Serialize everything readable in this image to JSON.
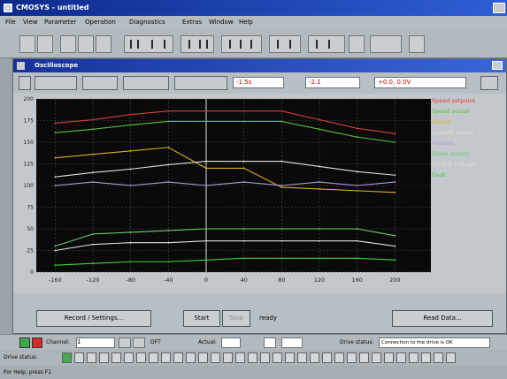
{
  "app": {
    "title": "CMOSYS - untitled"
  },
  "menu": [
    "File",
    "View",
    "Parameter",
    "Operation",
    "Diagnostics",
    "Extras",
    "Window",
    "Help"
  ],
  "child_window": {
    "title": "Oscilloscope"
  },
  "chart_toolbar": {
    "readout_1": "-1.5s",
    "readout_2": "-2.1",
    "readout_3": "+0.0, 0.0V"
  },
  "chart_data": {
    "type": "line",
    "x": [
      -160,
      -120,
      -80,
      -40,
      0,
      40,
      80,
      120,
      160,
      200
    ],
    "xlim": [
      -180,
      240
    ],
    "ylim": [
      0,
      200
    ],
    "x_ticks": [
      "-160",
      "-120",
      "-80",
      "-40",
      "0",
      "40",
      "80",
      "120",
      "160",
      "200"
    ],
    "y_ticks": [
      "200",
      "175",
      "150",
      "125",
      "100",
      "75",
      "50",
      "25",
      "0"
    ],
    "grid": true,
    "legend_position": "right",
    "series": [
      {
        "name": "Speed setpoint",
        "color": "#e23b3b",
        "values": [
          172,
          176,
          182,
          186,
          186,
          186,
          186,
          176,
          166,
          160
        ]
      },
      {
        "name": "Speed actual",
        "color": "#5fbe3a",
        "values": [
          161,
          165,
          170,
          174,
          174,
          174,
          174,
          165,
          156,
          150
        ]
      },
      {
        "name": "Torque",
        "color": "#d7b321",
        "values": [
          132,
          136,
          140,
          144,
          120,
          120,
          98,
          96,
          94,
          92
        ]
      },
      {
        "name": "Current actual",
        "color": "#e2e2e2",
        "values": [
          110,
          115,
          119,
          124,
          128,
          128,
          128,
          122,
          116,
          112
        ]
      },
      {
        "name": "Position",
        "color": "#b59be0",
        "values": [
          100,
          104,
          100,
          104,
          100,
          104,
          100,
          104,
          100,
          104
        ]
      },
      {
        "name": "Brake output",
        "color": "#6fd16f",
        "values": [
          30,
          44,
          46,
          48,
          50,
          50,
          50,
          50,
          50,
          42
        ]
      },
      {
        "name": "DC link voltage",
        "color": "#e0e0e0",
        "values": [
          25,
          32,
          34,
          34,
          36,
          36,
          36,
          36,
          36,
          30
        ]
      },
      {
        "name": "Fault",
        "color": "#39d43a",
        "values": [
          8,
          10,
          12,
          12,
          14,
          16,
          16,
          16,
          16,
          14
        ]
      }
    ]
  },
  "buttons": {
    "record": "Record / Settings...",
    "start": "Start",
    "stop": "Stop",
    "status": "ready",
    "read_data": "Read Data..."
  },
  "statusbar": {
    "label_1": "Channel:",
    "value_1": "1",
    "label_2": "DFT",
    "label_3": "Actual:",
    "label_4": "Drive status:",
    "drive_status": "Connection to the drive is OK"
  },
  "statusbar2": {
    "label": "Drive status:"
  },
  "statusbar3": {
    "text": "For Help, press F1"
  },
  "colors": {
    "plot_bg": "#0a0a0a",
    "grid": "#4a4a4a",
    "window_bg": "#b8bfc4",
    "title_blue": "#17329a"
  }
}
